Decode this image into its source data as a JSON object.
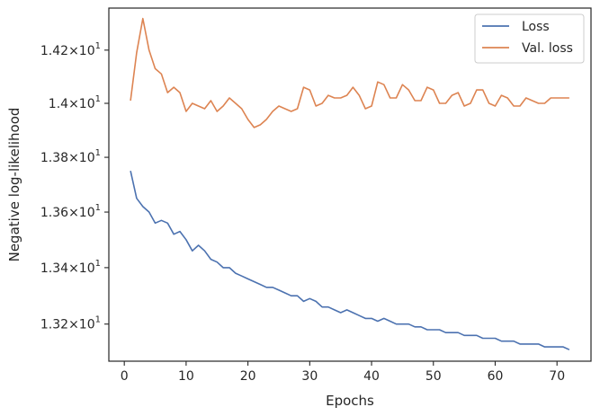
{
  "chart_data": {
    "type": "line",
    "xlabel": "Epochs",
    "ylabel": "Negative log-likelihood",
    "xlim": [
      -2.5,
      75.5
    ],
    "ylim": [
      13.07,
      14.36
    ],
    "y_scale": "log",
    "grid": false,
    "legend_position": "top-right",
    "x_ticks": [
      0,
      10,
      20,
      30,
      40,
      50,
      60,
      70
    ],
    "y_ticks": [
      {
        "value": 13.2,
        "mantissa": "1.32",
        "times": "×",
        "base": "10",
        "exp": "1"
      },
      {
        "value": 13.4,
        "mantissa": "1.34",
        "times": "×",
        "base": "10",
        "exp": "1"
      },
      {
        "value": 13.6,
        "mantissa": "1.36",
        "times": "×",
        "base": "10",
        "exp": "1"
      },
      {
        "value": 13.8,
        "mantissa": "1.38",
        "times": "×",
        "base": "10",
        "exp": "1"
      },
      {
        "value": 14.0,
        "mantissa": "1.4",
        "times": "×",
        "base": "10",
        "exp": "1"
      },
      {
        "value": 14.2,
        "mantissa": "1.42",
        "times": "×",
        "base": "10",
        "exp": "1"
      }
    ],
    "series": [
      {
        "name": "Loss",
        "color": "#4c72b0",
        "x": [
          1,
          2,
          3,
          4,
          5,
          6,
          7,
          8,
          9,
          10,
          11,
          12,
          13,
          14,
          15,
          16,
          17,
          18,
          19,
          20,
          21,
          22,
          23,
          24,
          25,
          26,
          27,
          28,
          29,
          30,
          31,
          32,
          33,
          34,
          35,
          36,
          37,
          38,
          39,
          40,
          41,
          42,
          43,
          44,
          45,
          46,
          47,
          48,
          49,
          50,
          51,
          52,
          53,
          54,
          55,
          56,
          57,
          58,
          59,
          60,
          61,
          62,
          63,
          64,
          65,
          66,
          67,
          68,
          69,
          70,
          71,
          72
        ],
        "values": [
          13.75,
          13.65,
          13.62,
          13.6,
          13.56,
          13.57,
          13.56,
          13.52,
          13.53,
          13.5,
          13.46,
          13.48,
          13.46,
          13.43,
          13.42,
          13.4,
          13.4,
          13.38,
          13.37,
          13.36,
          13.35,
          13.34,
          13.33,
          13.33,
          13.32,
          13.31,
          13.3,
          13.3,
          13.28,
          13.29,
          13.28,
          13.26,
          13.26,
          13.25,
          13.24,
          13.25,
          13.24,
          13.23,
          13.22,
          13.22,
          13.21,
          13.22,
          13.21,
          13.2,
          13.2,
          13.2,
          13.19,
          13.19,
          13.18,
          13.18,
          13.18,
          13.17,
          13.17,
          13.17,
          13.16,
          13.16,
          13.16,
          13.15,
          13.15,
          13.15,
          13.14,
          13.14,
          13.14,
          13.13,
          13.13,
          13.13,
          13.13,
          13.12,
          13.12,
          13.12,
          13.12,
          13.11
        ]
      },
      {
        "name": "Val. loss",
        "color": "#dd8452",
        "x": [
          1,
          2,
          3,
          4,
          5,
          6,
          7,
          8,
          9,
          10,
          11,
          12,
          13,
          14,
          15,
          16,
          17,
          18,
          19,
          20,
          21,
          22,
          23,
          24,
          25,
          26,
          27,
          28,
          29,
          30,
          31,
          32,
          33,
          34,
          35,
          36,
          37,
          38,
          39,
          40,
          41,
          42,
          43,
          44,
          45,
          46,
          47,
          48,
          49,
          50,
          51,
          52,
          53,
          54,
          55,
          56,
          57,
          58,
          59,
          60,
          61,
          62,
          63,
          64,
          65,
          66,
          67,
          68,
          69,
          70,
          71,
          72
        ],
        "values": [
          14.01,
          14.19,
          14.32,
          14.2,
          14.13,
          14.11,
          14.04,
          14.06,
          14.04,
          13.97,
          14.0,
          13.99,
          13.98,
          14.01,
          13.97,
          13.99,
          14.02,
          14.0,
          13.98,
          13.94,
          13.91,
          13.92,
          13.94,
          13.97,
          13.99,
          13.98,
          13.97,
          13.98,
          14.06,
          14.05,
          13.99,
          14.0,
          14.03,
          14.02,
          14.02,
          14.03,
          14.06,
          14.03,
          13.98,
          13.99,
          14.08,
          14.07,
          14.02,
          14.02,
          14.07,
          14.05,
          14.01,
          14.01,
          14.06,
          14.05,
          14.0,
          14.0,
          14.03,
          14.04,
          13.99,
          14.0,
          14.05,
          14.05,
          14.0,
          13.99,
          14.03,
          14.02,
          13.99,
          13.99,
          14.02,
          14.01,
          14.0,
          14.0,
          14.02,
          14.02,
          14.02,
          14.02
        ]
      }
    ]
  }
}
